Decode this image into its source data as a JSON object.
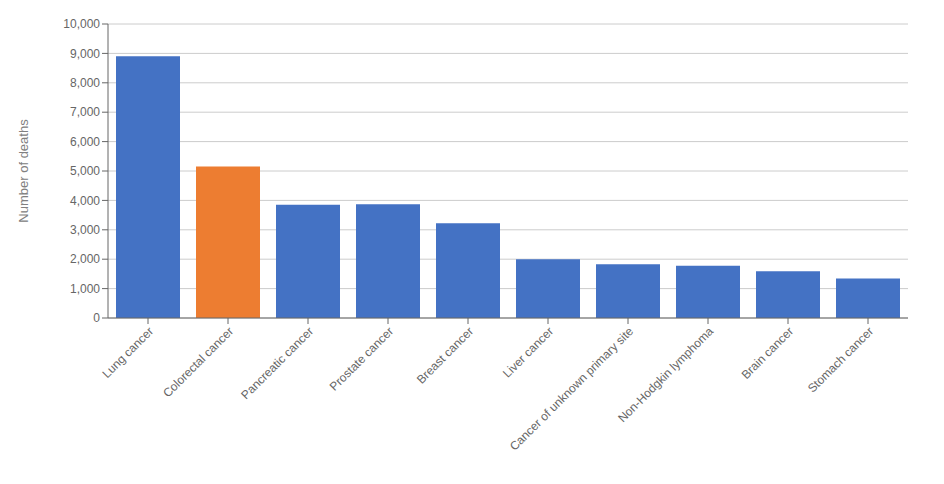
{
  "chart_data": {
    "type": "bar",
    "categories": [
      "Lung cancer",
      "Colorectal cancer",
      "Pancreatic cancer",
      "Prostate cancer",
      "Breast cancer",
      "Liver cancer",
      "Cancer of unknown primary site",
      "Non-Hodgkin lymphoma",
      "Brain cancer",
      "Stomach cancer"
    ],
    "values": [
      8900,
      5150,
      3850,
      3870,
      3220,
      2000,
      1830,
      1780,
      1590,
      1340
    ],
    "colors": [
      "#4472C4",
      "#ED7D31",
      "#4472C4",
      "#4472C4",
      "#4472C4",
      "#4472C4",
      "#4472C4",
      "#4472C4",
      "#4472C4",
      "#4472C4"
    ],
    "ylabel": "Number of deaths",
    "ylim": [
      0,
      10000
    ],
    "yticks": [
      0,
      {
        "value": 1000,
        "label": "1,000"
      },
      {
        "value": 2000,
        "label": "2,000"
      },
      {
        "value": 3000,
        "label": "3,000"
      },
      {
        "value": 4000,
        "label": "4,000"
      },
      {
        "value": 5000,
        "label": "5,000"
      },
      {
        "value": 6000,
        "label": "6,000"
      },
      {
        "value": 7000,
        "label": "7,000"
      },
      {
        "value": 8000,
        "label": "8,000"
      },
      {
        "value": 9000,
        "label": "9,000"
      },
      {
        "value": 10000,
        "label": "10,000"
      }
    ],
    "grid": true
  }
}
